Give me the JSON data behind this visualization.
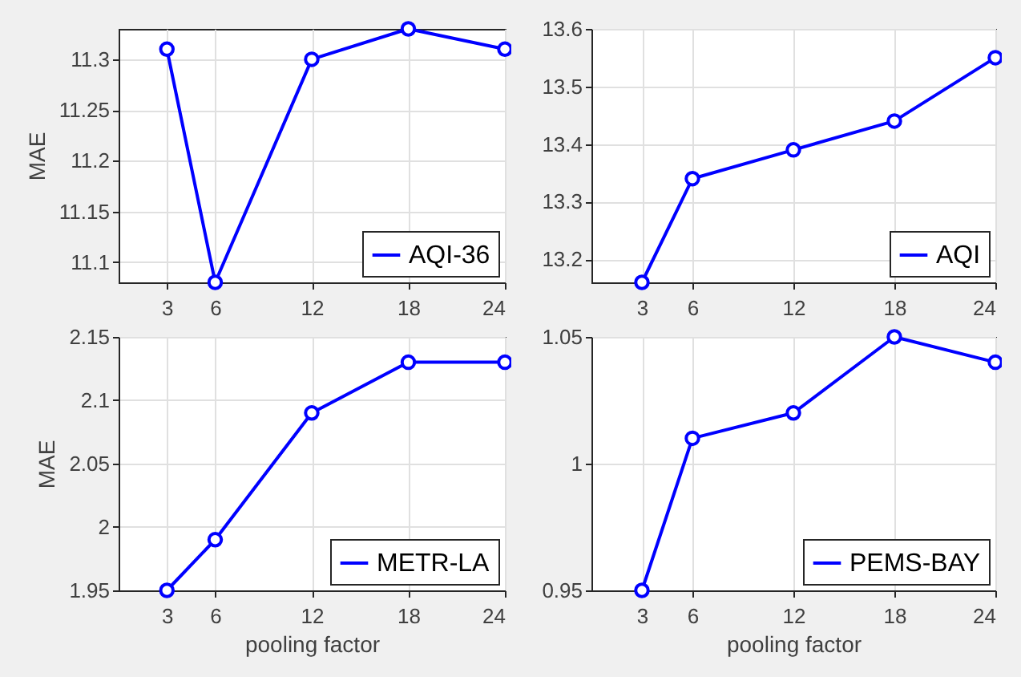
{
  "chart_data": [
    {
      "type": "line",
      "ylabel": "MAE",
      "x": [
        3,
        6,
        12,
        18,
        24
      ],
      "xlim": [
        0,
        24
      ],
      "xticks": [
        3,
        6,
        12,
        18,
        24
      ],
      "ylim": [
        11.08,
        11.33
      ],
      "yticks": [
        11.1,
        11.15,
        11.2,
        11.25,
        11.3
      ],
      "grid": true,
      "legend": "bottom right",
      "marker": "circle",
      "series": [
        {
          "name": "AQI-36",
          "color": "#0000ff",
          "values": [
            11.31,
            11.08,
            11.3,
            11.33,
            11.31
          ]
        }
      ]
    },
    {
      "type": "line",
      "x": [
        3,
        6,
        12,
        18,
        24
      ],
      "xlim": [
        0,
        24
      ],
      "xticks": [
        3,
        6,
        12,
        18,
        24
      ],
      "ylim": [
        13.16,
        13.6
      ],
      "yticks": [
        13.2,
        13.3,
        13.4,
        13.5,
        13.6
      ],
      "grid": true,
      "legend": "bottom right",
      "marker": "circle",
      "series": [
        {
          "name": "AQI",
          "color": "#0000ff",
          "values": [
            13.16,
            13.34,
            13.39,
            13.44,
            13.55
          ]
        }
      ]
    },
    {
      "type": "line",
      "ylabel": "MAE",
      "xlabel": "pooling factor",
      "x": [
        3,
        6,
        12,
        18,
        24
      ],
      "xlim": [
        0,
        24
      ],
      "xticks": [
        3,
        6,
        12,
        18,
        24
      ],
      "ylim": [
        1.95,
        2.15
      ],
      "yticks": [
        1.95,
        2,
        2.05,
        2.1,
        2.15
      ],
      "grid": true,
      "legend": "bottom right",
      "marker": "circle",
      "series": [
        {
          "name": "METR-LA",
          "color": "#0000ff",
          "values": [
            1.95,
            1.99,
            2.09,
            2.13,
            2.13
          ]
        }
      ]
    },
    {
      "type": "line",
      "xlabel": "pooling factor",
      "x": [
        3,
        6,
        12,
        18,
        24
      ],
      "xlim": [
        0,
        24
      ],
      "xticks": [
        3,
        6,
        12,
        18,
        24
      ],
      "ylim": [
        0.95,
        1.05
      ],
      "yticks": [
        0.95,
        1,
        1.05
      ],
      "grid": true,
      "legend": "bottom right",
      "marker": "circle",
      "series": [
        {
          "name": "PEMS-BAY",
          "color": "#0000ff",
          "values": [
            0.95,
            1.01,
            1.02,
            1.05,
            1.04
          ]
        }
      ]
    }
  ]
}
